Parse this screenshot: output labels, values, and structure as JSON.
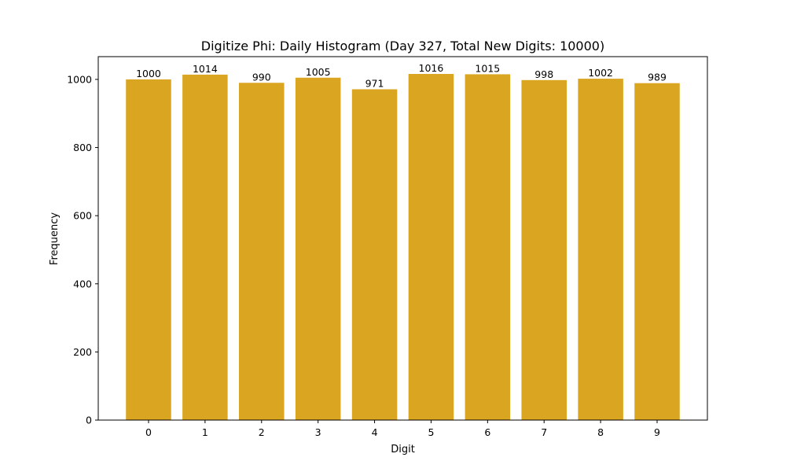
{
  "chart_data": {
    "type": "bar",
    "title": "Digitize Phi: Daily Histogram (Day 327, Total New Digits: 10000)",
    "xlabel": "Digit",
    "ylabel": "Frequency",
    "categories": [
      "0",
      "1",
      "2",
      "3",
      "4",
      "5",
      "6",
      "7",
      "8",
      "9"
    ],
    "values": [
      1000,
      1014,
      990,
      1005,
      971,
      1016,
      1015,
      998,
      1002,
      989
    ],
    "data_labels": [
      "1000",
      "1014",
      "990",
      "1005",
      "971",
      "1016",
      "1015",
      "998",
      "1002",
      "989"
    ],
    "ylim": [
      0,
      1066.8
    ],
    "yticks": [
      0,
      200,
      400,
      600,
      800,
      1000
    ],
    "ytick_labels": [
      "0",
      "200",
      "400",
      "600",
      "800",
      "1000"
    ],
    "bar_color": "#DAA520",
    "grid": false,
    "legend": "none"
  }
}
